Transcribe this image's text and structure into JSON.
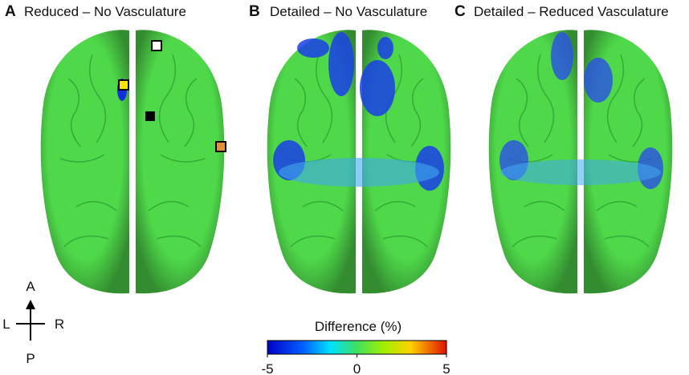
{
  "panels": [
    {
      "letter": "A",
      "title": "Reduced – No Vasculature"
    },
    {
      "letter": "B",
      "title": "Detailed – No Vasculature"
    },
    {
      "letter": "C",
      "title": "Detailed – Reduced Vasculature"
    }
  ],
  "compass": {
    "up": "A",
    "down": "P",
    "left": "L",
    "right": "R"
  },
  "colorbar": {
    "title": "Difference (%)",
    "range": [
      -5,
      5
    ],
    "ticks": [
      -5,
      0,
      5
    ]
  }
}
